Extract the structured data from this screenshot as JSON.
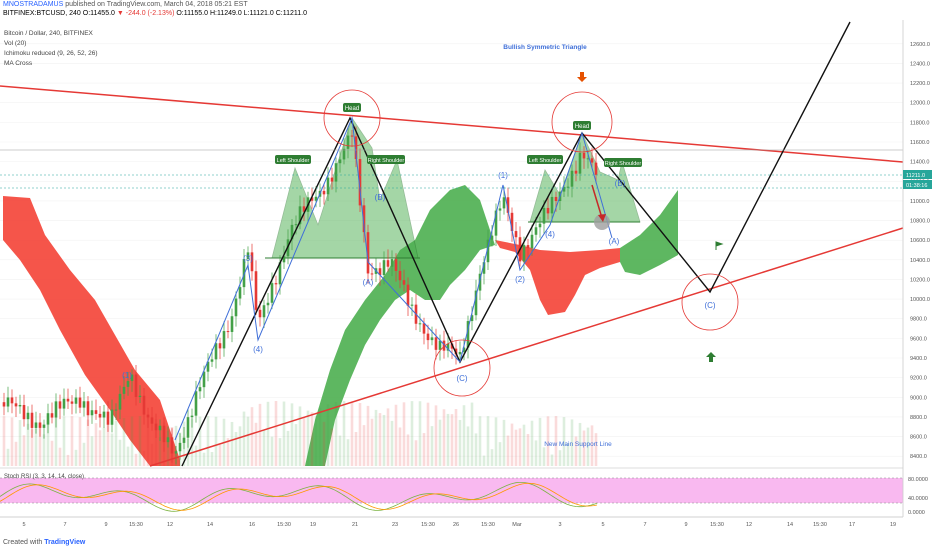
{
  "header": {
    "author": "MNOSTRADAMUS",
    "published": "published on TradingView.com, March 04, 2018 05:21 EST",
    "symbol_line": "BITFINEX:BTCUSD, 240",
    "ohlc": "O:11455.0",
    "change": "▼ -244.0 (-2.13%)",
    "ohlc_rest": "O:11155.0 H:11249.0 L:11121.0 C:11211.0"
  },
  "indicators": [
    "Bitcoin / Dollar, 240, BITFINEX",
    "Vol (20)",
    "Ichimoku reduced (9, 26, 52, 26)",
    "MA Cross"
  ],
  "annotations": {
    "triangle": "Bullish Symmetric Triangle",
    "head1": "Head",
    "left_shoulder1": "Left Shoulder",
    "right_shoulder1": "Right Shoulder",
    "head2": "Head",
    "left_shoulder2": "Left Shoulder",
    "right_shoulder2": "Right Shoulder",
    "support": "New Main Support Line",
    "w1": "(1)",
    "w3": "(3)",
    "w4": "(4)",
    "wA": "(A)",
    "wB": "(B)",
    "wC": "(C)",
    "w1b": "(1)",
    "w2b": "(2)",
    "w4b": "(4)",
    "wBb": "(B)",
    "wAb": "(A)",
    "wCc": "(C)"
  },
  "stoch_label": "Stoch RSI (3, 3, 14, 14, close)",
  "price_tag_last": "11211.0",
  "price_tag_timer": "01:38:16",
  "footer": {
    "created": "Created with",
    "brand": "TradingView"
  },
  "colors": {
    "up": "#43a047",
    "down": "#e53935",
    "cloud_up": "#4caf50",
    "cloud_down": "#f44336",
    "wave": "#3f6fd8",
    "stoch_bg": "#f9b9f0"
  },
  "chart_data": {
    "type": "candlestick",
    "title": "Bitcoin / Dollar, 240, BITFINEX",
    "y_ticks": [
      12600,
      12400,
      12200,
      12000,
      11800,
      11600,
      11400,
      11200,
      11000,
      10800,
      10600,
      10400,
      10200,
      10000,
      9800,
      9600,
      9400,
      9200,
      9000,
      8800,
      8600,
      8400
    ],
    "stoch_ticks": [
      "80.0000",
      "40.0000",
      "0.0000"
    ],
    "x_ticks": [
      "5",
      "7",
      "9",
      "15:30",
      "12",
      "14",
      "16",
      "15:30",
      "19",
      "21",
      "23",
      "15:30",
      "26",
      "15:30",
      "Mar",
      "3",
      "5",
      "7",
      "9",
      "15:30",
      "12",
      "14",
      "15:30",
      "17",
      "19"
    ],
    "ylim": [
      8300,
      12700
    ],
    "grid": true
  }
}
